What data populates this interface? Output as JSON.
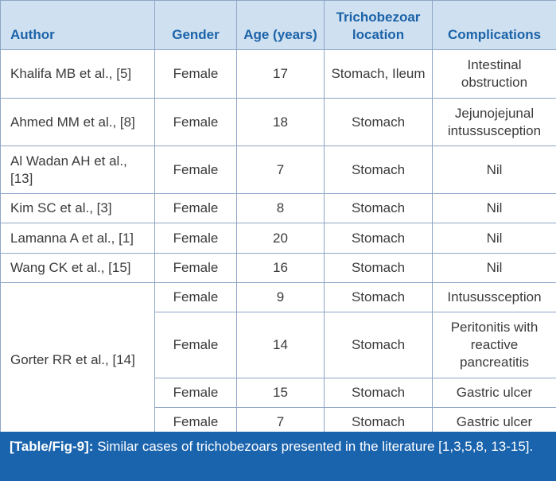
{
  "headers": [
    "Author",
    "Gender",
    "Age (years)",
    "Trichobezoar location",
    "Complications"
  ],
  "rows": [
    {
      "author": "Khalifa MB et al., [5]",
      "gender": "Female",
      "age": "17",
      "location": "Stomach, Ileum",
      "complications": "Intestinal obstruction"
    },
    {
      "author": "Ahmed MM et al., [8]",
      "gender": "Female",
      "age": "18",
      "location": "Stomach",
      "complications": "Jejunojejunal intussusception"
    },
    {
      "author": "Al Wadan AH et al., [13]",
      "gender": "Female",
      "age": "7",
      "location": "Stomach",
      "complications": "Nil"
    },
    {
      "author": "Kim SC et al., [3]",
      "gender": "Female",
      "age": "8",
      "location": "Stomach",
      "complications": "Nil"
    },
    {
      "author": "Lamanna A et al., [1]",
      "gender": "Female",
      "age": "20",
      "location": "Stomach",
      "complications": "Nil"
    },
    {
      "author": "Wang CK et al., [15]",
      "gender": "Female",
      "age": "16",
      "location": "Stomach",
      "complications": "Nil"
    },
    {
      "author": "Gorter RR et al., [14]",
      "gender": "Female",
      "age": "9",
      "location": "Stomach",
      "complications": "Intusussception"
    },
    {
      "author": "",
      "gender": "Female",
      "age": "14",
      "location": "Stomach",
      "complications": "Peritonitis with reactive pancreatitis"
    },
    {
      "author": "",
      "gender": "Female",
      "age": "15",
      "location": "Stomach",
      "complications": "Gastric ulcer"
    },
    {
      "author": "",
      "gender": "Female",
      "age": "7",
      "location": "Stomach",
      "complications": "Gastric ulcer"
    }
  ],
  "caption": {
    "label": "[Table/Fig-9]:",
    "text": "Similar cases of trichobezoars presented in the literature [1,3,5,8, 13-15]."
  }
}
